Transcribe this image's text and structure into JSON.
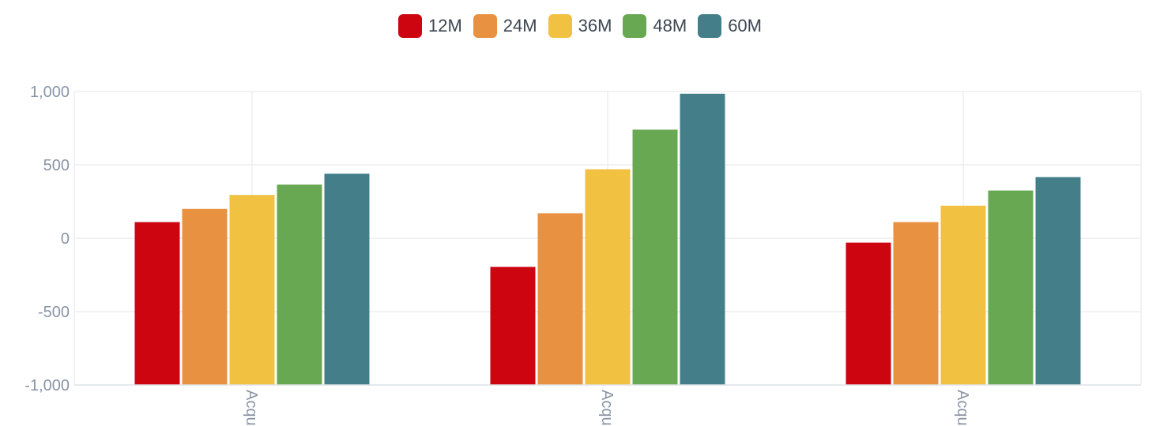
{
  "chart_data": {
    "type": "bar",
    "categories": [
      "Acqu",
      "Acqu",
      "Acqu"
    ],
    "series": [
      {
        "name": "12M",
        "color": "#cc0510",
        "values": [
          110,
          -195,
          -30
        ]
      },
      {
        "name": "24M",
        "color": "#e89140",
        "values": [
          200,
          170,
          110
        ]
      },
      {
        "name": "36M",
        "color": "#f1c142",
        "values": [
          295,
          470,
          222
        ]
      },
      {
        "name": "48M",
        "color": "#68a853",
        "values": [
          366,
          740,
          325
        ]
      },
      {
        "name": "60M",
        "color": "#447f89",
        "values": [
          440,
          985,
          417
        ]
      }
    ],
    "ylim": [
      -1000,
      1000
    ],
    "yticks": [
      "1,000",
      "500",
      "0",
      "-500",
      "-1,000"
    ],
    "yticks_values": [
      1000,
      500,
      0,
      -500,
      -1000
    ],
    "grid": true,
    "legend_position": "top-center"
  }
}
